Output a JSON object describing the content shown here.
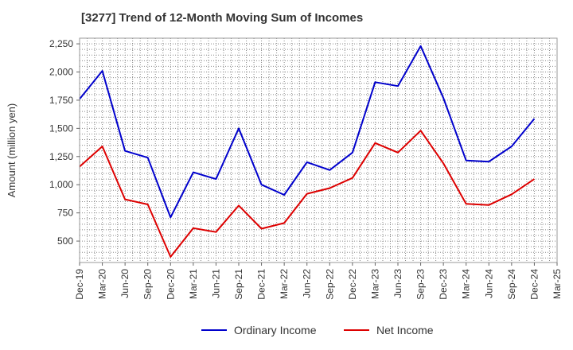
{
  "chart_data": {
    "type": "line",
    "title": "[3277]  Trend of 12-Month Moving Sum of Incomes",
    "xlabel": "",
    "ylabel": "Amount (million yen)",
    "categories": [
      "Dec-19",
      "Mar-20",
      "Jun-20",
      "Sep-20",
      "Dec-20",
      "Mar-21",
      "Jun-21",
      "Sep-21",
      "Dec-21",
      "Mar-22",
      "Jun-22",
      "Sep-22",
      "Dec-22",
      "Mar-23",
      "Jun-23",
      "Sep-23",
      "Dec-23",
      "Mar-24",
      "Jun-24",
      "Sep-24",
      "Dec-24",
      "Mar-25"
    ],
    "ylim": [
      310,
      2300
    ],
    "yticks": [
      500,
      750,
      1000,
      1250,
      1500,
      1750,
      2000,
      2250
    ],
    "ytick_labels": [
      "500",
      "750",
      "1,000",
      "1,250",
      "1,500",
      "1,750",
      "2,000",
      "2,250"
    ],
    "grid": true,
    "legend_position": "bottom",
    "series": [
      {
        "name": "Ordinary Income",
        "color": "#0000cc",
        "values": [
          1760,
          2010,
          1300,
          1240,
          710,
          1110,
          1050,
          1500,
          1000,
          910,
          1200,
          1130,
          1285,
          1910,
          1875,
          2230,
          1770,
          1215,
          1205,
          1340,
          1585,
          null
        ]
      },
      {
        "name": "Net Income",
        "color": "#dd0000",
        "values": [
          1160,
          1340,
          870,
          825,
          360,
          615,
          580,
          815,
          610,
          660,
          920,
          970,
          1060,
          1370,
          1285,
          1480,
          1190,
          830,
          820,
          915,
          1050,
          null
        ]
      }
    ]
  }
}
